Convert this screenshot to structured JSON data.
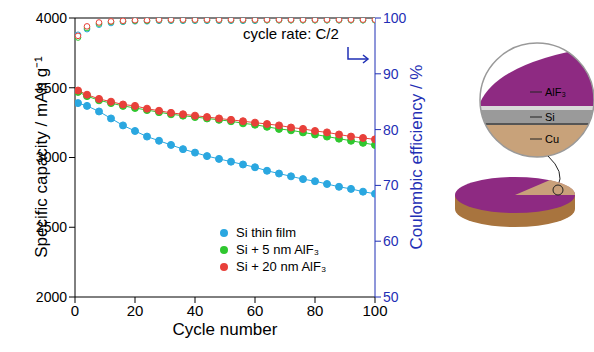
{
  "chart_data": {
    "type": "line",
    "annotation": "cycle rate: C/2",
    "xlabel": "Cycle number",
    "ylabel": "Specific capacity / mAh g⁻¹",
    "y2label": "Coulombic efficiency / %",
    "x": [
      1,
      4,
      8,
      12,
      16,
      20,
      24,
      28,
      32,
      36,
      40,
      44,
      48,
      52,
      56,
      60,
      64,
      68,
      72,
      76,
      80,
      84,
      88,
      92,
      96,
      100
    ],
    "xlim": [
      0,
      100
    ],
    "xticks": [
      0,
      20,
      40,
      60,
      80,
      100
    ],
    "ylim": [
      2000,
      4000
    ],
    "yticks": [
      2000,
      2500,
      3000,
      3500,
      4000
    ],
    "y2lim": [
      50,
      100
    ],
    "y2ticks": [
      50,
      60,
      70,
      80,
      90,
      100
    ],
    "legend": "lower right",
    "series": [
      {
        "name": "Si thin film",
        "color": "#2aa7e0",
        "marker": "circle",
        "line_style": "solid",
        "values": [
          3390,
          3370,
          3330,
          3280,
          3230,
          3190,
          3150,
          3120,
          3090,
          3060,
          3035,
          3010,
          2990,
          2970,
          2950,
          2930,
          2905,
          2885,
          2865,
          2845,
          2830,
          2810,
          2790,
          2775,
          2755,
          2740
        ]
      },
      {
        "name": "Si + 5 nm AlF₃",
        "color": "#2fc72f",
        "marker": "circle",
        "line_style": "solid",
        "values": [
          3470,
          3440,
          3410,
          3390,
          3370,
          3355,
          3340,
          3325,
          3310,
          3300,
          3290,
          3280,
          3270,
          3260,
          3245,
          3235,
          3220,
          3205,
          3195,
          3180,
          3165,
          3150,
          3135,
          3120,
          3105,
          3090
        ]
      },
      {
        "name": "Si + 20 nm AlF₃",
        "color": "#e8403a",
        "marker": "circle",
        "line_style": "solid",
        "values": [
          3480,
          3450,
          3420,
          3400,
          3380,
          3370,
          3350,
          3335,
          3320,
          3310,
          3300,
          3290,
          3280,
          3270,
          3260,
          3250,
          3240,
          3230,
          3215,
          3205,
          3190,
          3180,
          3165,
          3150,
          3140,
          3130
        ]
      },
      {
        "color": "#2aa7e0",
        "marker": "open circle",
        "line_style": "none",
        "axis": "y2",
        "values": [
          97.0,
          98.0,
          98.8,
          99.1,
          99.3,
          99.4,
          99.4,
          99.5,
          99.5,
          99.5,
          99.5,
          99.5,
          99.5,
          99.5,
          99.5,
          99.5,
          99.6,
          99.6,
          99.6,
          99.6,
          99.6,
          99.6,
          99.6,
          99.6,
          99.6,
          99.6
        ]
      },
      {
        "color": "#2fc72f",
        "marker": "open circle",
        "line_style": "none",
        "axis": "y2",
        "values": [
          96.5,
          98.2,
          99.0,
          99.3,
          99.4,
          99.5,
          99.5,
          99.6,
          99.6,
          99.6,
          99.6,
          99.6,
          99.6,
          99.6,
          99.6,
          99.6,
          99.6,
          99.6,
          99.6,
          99.6,
          99.6,
          99.6,
          99.6,
          99.6,
          99.6,
          99.6
        ]
      },
      {
        "color": "#e8403a",
        "marker": "open circle",
        "line_style": "none",
        "axis": "y2",
        "values": [
          96.8,
          98.5,
          99.2,
          99.4,
          99.5,
          99.6,
          99.6,
          99.7,
          99.7,
          99.7,
          99.7,
          99.7,
          99.7,
          99.7,
          99.7,
          99.7,
          99.7,
          99.7,
          99.7,
          99.7,
          99.7,
          99.7,
          99.7,
          99.7,
          99.7,
          99.7
        ]
      }
    ]
  },
  "diagram": {
    "layers": [
      "AlF₃",
      "Si",
      "Cu"
    ]
  }
}
